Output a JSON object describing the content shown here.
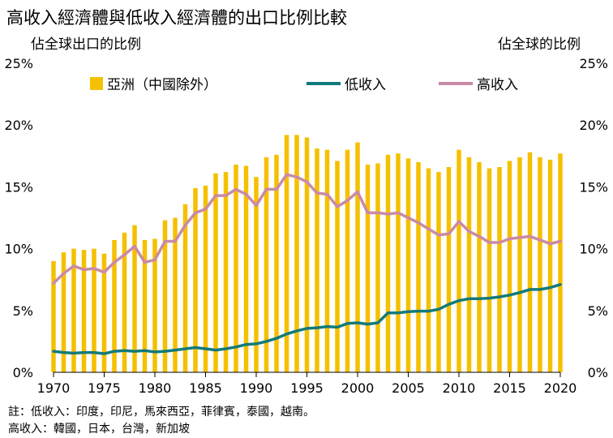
{
  "title": "高收入經濟體與低收入經濟體的出口比例比較",
  "left_axis_title": "佔全球出口的比例",
  "right_axis_title": "佔全球的比例",
  "notes": {
    "line1": "註：低收入：印度，印尼，馬來西亞，菲律賓，泰國，越南。",
    "line2": "高收入：韓國，日本，台灣，新加坡"
  },
  "colors": {
    "bar": "#F5C000",
    "low": "#127A7A",
    "high": "#C98AA8"
  },
  "chart_data": {
    "type": "bar",
    "x": [
      1970,
      1971,
      1972,
      1973,
      1974,
      1975,
      1976,
      1977,
      1978,
      1979,
      1980,
      1981,
      1982,
      1983,
      1984,
      1985,
      1986,
      1987,
      1988,
      1989,
      1990,
      1991,
      1992,
      1993,
      1994,
      1995,
      1996,
      1997,
      1998,
      1999,
      2000,
      2001,
      2002,
      2003,
      2004,
      2005,
      2006,
      2007,
      2008,
      2009,
      2010,
      2011,
      2012,
      2013,
      2014,
      2015,
      2016,
      2017,
      2018,
      2019,
      2020
    ],
    "series": [
      {
        "name": "亞洲（中國除外）",
        "type": "bar",
        "values": [
          9.0,
          9.7,
          10.0,
          9.9,
          10.0,
          9.6,
          10.7,
          11.3,
          11.9,
          10.7,
          10.8,
          12.3,
          12.5,
          13.6,
          14.9,
          15.1,
          16.1,
          16.2,
          16.8,
          16.7,
          15.8,
          17.4,
          17.6,
          19.2,
          19.2,
          19.0,
          18.1,
          18.0,
          17.1,
          18.0,
          18.6,
          16.8,
          16.9,
          17.6,
          17.7,
          17.3,
          17.0,
          16.5,
          16.2,
          16.6,
          18.0,
          17.4,
          17.0,
          16.5,
          16.6,
          17.1,
          17.4,
          17.8,
          17.4,
          17.2,
          17.7
        ]
      },
      {
        "name": "低收入",
        "type": "line",
        "values": [
          1.7,
          1.6,
          1.55,
          1.6,
          1.6,
          1.5,
          1.7,
          1.75,
          1.7,
          1.75,
          1.65,
          1.7,
          1.8,
          1.9,
          2.0,
          1.9,
          1.8,
          1.9,
          2.05,
          2.25,
          2.3,
          2.5,
          2.75,
          3.1,
          3.35,
          3.55,
          3.6,
          3.7,
          3.65,
          3.95,
          4.0,
          3.9,
          4.0,
          4.8,
          4.8,
          4.9,
          4.95,
          4.95,
          5.1,
          5.5,
          5.8,
          5.95,
          5.95,
          6.0,
          6.1,
          6.25,
          6.45,
          6.7,
          6.7,
          6.85,
          7.1
        ]
      },
      {
        "name": "高收入",
        "type": "line",
        "values": [
          7.2,
          8.0,
          8.6,
          8.3,
          8.4,
          8.1,
          8.9,
          9.5,
          10.2,
          8.9,
          9.1,
          10.6,
          10.6,
          11.9,
          12.9,
          13.2,
          14.3,
          14.3,
          14.8,
          14.4,
          13.5,
          14.8,
          14.8,
          16.0,
          15.8,
          15.4,
          14.5,
          14.4,
          13.4,
          13.9,
          14.6,
          12.9,
          12.9,
          12.8,
          12.9,
          12.5,
          12.1,
          11.6,
          11.1,
          11.2,
          12.2,
          11.4,
          11.0,
          10.5,
          10.5,
          10.8,
          10.9,
          11.0,
          10.7,
          10.4,
          10.6
        ]
      }
    ],
    "x_ticks": [
      "1970",
      "1975",
      "1980",
      "1985",
      "1990",
      "1995",
      "2000",
      "2005",
      "2010",
      "2015",
      "2020"
    ],
    "y_ticks": [
      "0%",
      "5%",
      "10%",
      "15%",
      "20%",
      "25%"
    ],
    "ylim": [
      0,
      25
    ],
    "unit": "%",
    "legend_position": "top",
    "grid": false
  }
}
